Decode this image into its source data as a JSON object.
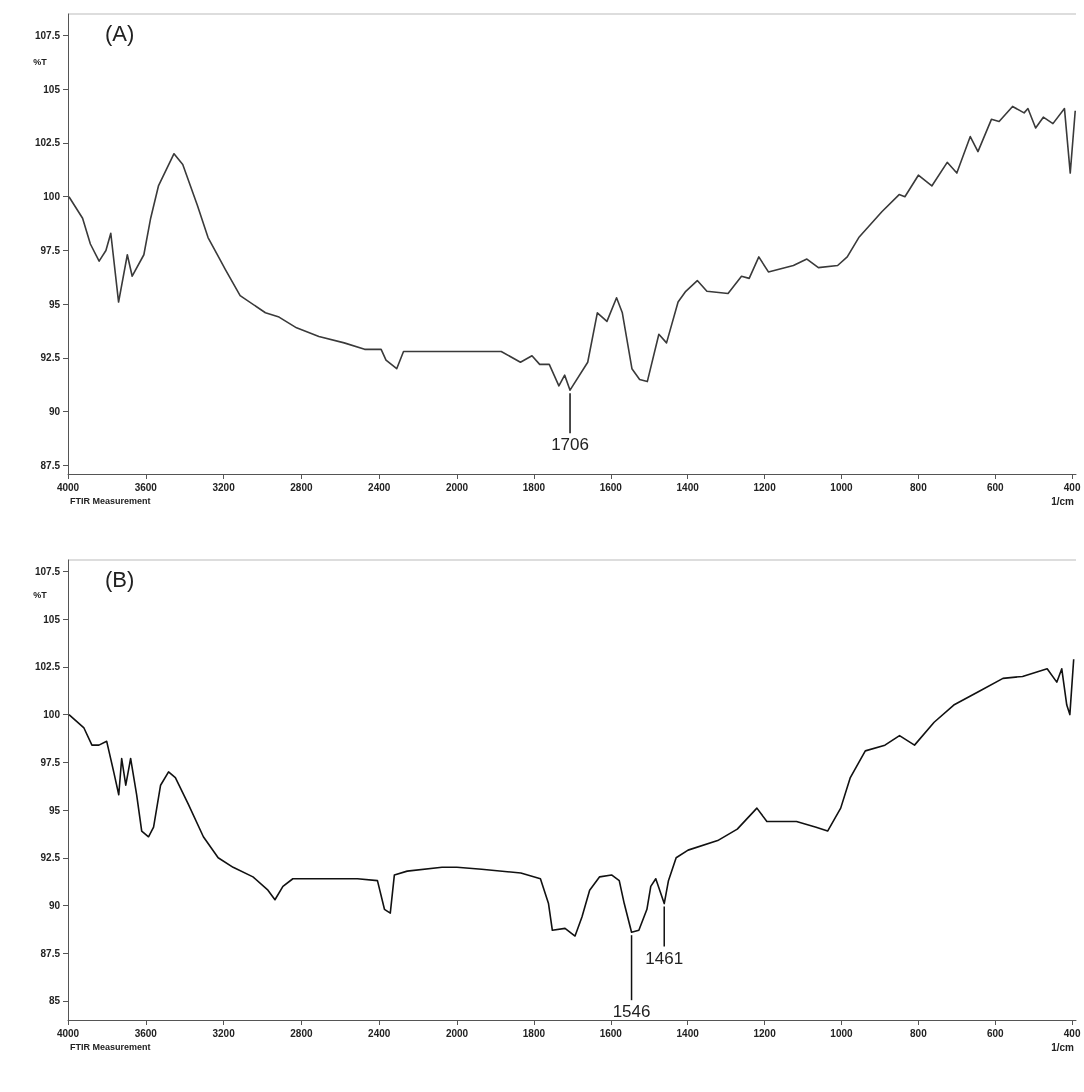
{
  "chart_data": [
    {
      "type": "line",
      "title": "(A)",
      "ylabel": "%T",
      "grid": false,
      "marker": "none",
      "line_style": "solid",
      "xlim": [
        4000,
        2000
      ],
      "xticks": [
        4000,
        3600,
        3200,
        2800,
        2400,
        2000
      ],
      "ylim": [
        87.1,
        108.5
      ],
      "yticks": [
        87.5,
        90,
        92.5,
        95,
        97.5,
        100,
        102.5,
        105,
        107.5
      ],
      "annotations": [
        "FTIR Measurement"
      ],
      "series": [
        {
          "color": "#3a3a3a",
          "x": [
            3995,
            3925,
            3885,
            3840,
            3805,
            3780,
            3740,
            3695,
            3670,
            3610,
            3575,
            3535,
            3455,
            3410,
            3335,
            3280,
            3190,
            3115,
            2985,
            2915,
            2825,
            2710,
            2580,
            2475,
            2390,
            2365,
            2310,
            2275,
            2125,
            2000
          ],
          "values": [
            100.0,
            99.0,
            97.8,
            97.0,
            97.5,
            98.3,
            95.1,
            97.3,
            96.3,
            97.3,
            99.0,
            100.5,
            102.0,
            101.5,
            99.6,
            98.1,
            96.6,
            95.4,
            94.6,
            94.4,
            93.9,
            93.5,
            93.2,
            92.9,
            92.9,
            92.4,
            92.0,
            92.8,
            92.8,
            92.8
          ]
        }
      ]
    },
    {
      "type": "line",
      "xlabel": "1/cm",
      "grid": false,
      "marker": "none",
      "line_style": "solid",
      "tick_labels": "x",
      "xlim": [
        2000,
        390
      ],
      "xticks": [
        1800,
        1600,
        1400,
        1200,
        1000,
        800,
        600,
        400
      ],
      "ylim": [
        87.1,
        108.5
      ],
      "annotations": [
        {
          "text": "1706",
          "x": 1706,
          "y": 91.0
        }
      ],
      "series": [
        {
          "color": "#3a3a3a",
          "x": [
            2000,
            1970,
            1885,
            1835,
            1805,
            1785,
            1760,
            1735,
            1720,
            1706,
            1660,
            1635,
            1610,
            1585,
            1570,
            1545,
            1525,
            1505,
            1475,
            1455,
            1425,
            1405,
            1375,
            1350,
            1295,
            1260,
            1240,
            1215,
            1190,
            1125,
            1090,
            1060,
            1010,
            985,
            955,
            895,
            850,
            835,
            800,
            765,
            725,
            700,
            665,
            645,
            610,
            590,
            555,
            525,
            515,
            495,
            475,
            450,
            420,
            405,
            392
          ],
          "values": [
            92.8,
            92.8,
            92.8,
            92.3,
            92.6,
            92.2,
            92.2,
            91.2,
            91.7,
            91.0,
            92.3,
            94.6,
            94.2,
            95.3,
            94.6,
            92.0,
            91.5,
            91.4,
            93.6,
            93.2,
            95.1,
            95.6,
            96.1,
            95.6,
            95.5,
            96.3,
            96.2,
            97.2,
            96.5,
            96.8,
            97.1,
            96.7,
            96.8,
            97.2,
            98.1,
            99.3,
            100.1,
            100.0,
            101.0,
            100.5,
            101.6,
            101.1,
            102.8,
            102.1,
            103.6,
            103.5,
            104.2,
            103.9,
            104.1,
            103.2,
            103.7,
            103.4,
            104.1,
            101.1,
            104.0
          ]
        }
      ]
    },
    {
      "type": "line",
      "title": "(B)",
      "ylabel": "%T",
      "grid": false,
      "marker": "none",
      "line_style": "solid",
      "xlim": [
        4000,
        2000
      ],
      "xticks": [
        4000,
        3600,
        3200,
        2800,
        2400,
        2000
      ],
      "ylim": [
        84,
        108.1
      ],
      "yticks": [
        85,
        87.5,
        90,
        92.5,
        95,
        97.5,
        100,
        102.5,
        105,
        107.5
      ],
      "annotations": [
        "FTIR Measurement"
      ],
      "series": [
        {
          "color": "#111111",
          "x": [
            3995,
            3918,
            3877,
            3841,
            3801,
            3765,
            3739,
            3724,
            3703,
            3678,
            3647,
            3621,
            3586,
            3560,
            3524,
            3483,
            3448,
            3381,
            3304,
            3228,
            3151,
            3049,
            2972,
            2936,
            2895,
            2844,
            2691,
            2512,
            2409,
            2373,
            2343,
            2322,
            2256,
            2077,
            2000
          ],
          "values": [
            100.0,
            99.3,
            98.4,
            98.4,
            98.6,
            97.0,
            95.8,
            97.7,
            96.3,
            97.7,
            95.8,
            93.9,
            93.6,
            94.1,
            96.3,
            97.0,
            96.7,
            95.3,
            93.6,
            92.5,
            92.0,
            91.5,
            90.8,
            90.3,
            91.0,
            91.4,
            91.4,
            91.4,
            91.3,
            89.8,
            89.6,
            91.6,
            91.8,
            92.0,
            92.0
          ]
        }
      ]
    },
    {
      "type": "line",
      "xlabel": "1/cm",
      "grid": false,
      "marker": "none",
      "line_style": "solid",
      "tick_labels": "x",
      "xlim": [
        2000,
        390
      ],
      "xticks": [
        1800,
        1600,
        1400,
        1200,
        1000,
        800,
        600,
        400
      ],
      "ylim": [
        84,
        108.1
      ],
      "annotations": [
        {
          "text": "1546",
          "x": 1546,
          "y": 88.6
        },
        {
          "text": "1461",
          "x": 1461,
          "y": 90.1
        }
      ],
      "series": [
        {
          "color": "#111111",
          "x": [
            2000,
            1936,
            1834,
            1783,
            1762,
            1752,
            1719,
            1693,
            1675,
            1655,
            1629,
            1598,
            1578,
            1565,
            1546,
            1527,
            1506,
            1496,
            1483,
            1461,
            1450,
            1430,
            1399,
            1322,
            1271,
            1220,
            1194,
            1117,
            1066,
            1036,
            1002,
            977,
            938,
            887,
            849,
            810,
            759,
            708,
            644,
            580,
            529,
            465,
            440,
            427,
            414,
            406,
            396
          ],
          "values": [
            92.0,
            91.9,
            91.7,
            91.4,
            90.1,
            88.7,
            88.8,
            88.4,
            89.4,
            90.8,
            91.5,
            91.6,
            91.3,
            90.1,
            88.6,
            88.7,
            89.8,
            91.0,
            91.4,
            90.1,
            91.3,
            92.5,
            92.9,
            93.4,
            94.0,
            95.1,
            94.4,
            94.4,
            94.1,
            93.9,
            95.1,
            96.7,
            98.1,
            98.4,
            98.9,
            98.4,
            99.6,
            100.5,
            101.2,
            101.9,
            102.0,
            102.4,
            101.7,
            102.4,
            100.5,
            100.0,
            102.9
          ]
        }
      ]
    }
  ]
}
